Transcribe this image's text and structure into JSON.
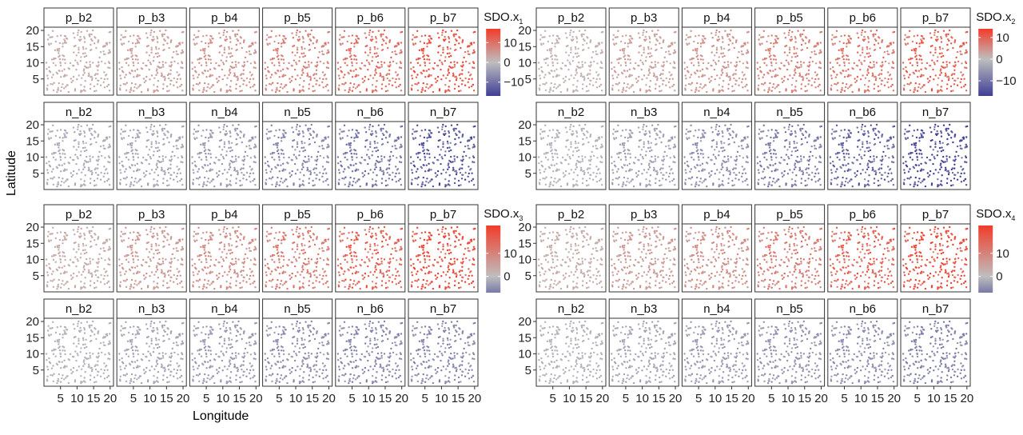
{
  "figure": {
    "ylabel": "Latitude",
    "xlabel": "Longitude"
  },
  "chart_data": {
    "type": "scatter",
    "x_ticks": [
      5,
      10,
      15,
      20
    ],
    "y_ticks": [
      5,
      10,
      15,
      20
    ],
    "xlim": [
      0,
      21
    ],
    "ylim": [
      0,
      21
    ],
    "grid": false,
    "color_scale": {
      "low": "#3f3e96",
      "mid": "#bebebe",
      "high": "#f23c2a"
    },
    "panels": [
      {
        "legend_title": "SDO.x",
        "legend_subscript": "1",
        "legend_ticks": [
          10,
          0,
          -10
        ],
        "legend_tick_labels": [
          "10",
          "0",
          "−10"
        ],
        "legend_range": [
          -17,
          17
        ],
        "rows": [
          {
            "sign": 1,
            "labels": [
              "p_b2",
              "p_b3",
              "p_b4",
              "p_b5",
              "p_b6",
              "p_b7"
            ],
            "levels": [
              0.15,
              0.25,
              0.35,
              0.5,
              0.65,
              0.85
            ]
          },
          {
            "sign": -1,
            "labels": [
              "n_b2",
              "n_b3",
              "n_b4",
              "n_b5",
              "n_b6",
              "n_b7"
            ],
            "levels": [
              0.15,
              0.2,
              0.3,
              0.45,
              0.6,
              0.85
            ]
          }
        ]
      },
      {
        "legend_title": "SDO.x",
        "legend_subscript": "2",
        "legend_ticks": [
          10,
          0,
          -10
        ],
        "legend_tick_labels": [
          "10",
          "0",
          "−10"
        ],
        "legend_range": [
          -17,
          14
        ],
        "rows": [
          {
            "sign": 1,
            "labels": [
              "p_b2",
              "p_b3",
              "p_b4",
              "p_b5",
              "p_b6",
              "p_b7"
            ],
            "levels": [
              0.1,
              0.25,
              0.35,
              0.5,
              0.6,
              0.75
            ]
          },
          {
            "sign": -1,
            "labels": [
              "n_b2",
              "n_b3",
              "n_b4",
              "n_b5",
              "n_b6",
              "n_b7"
            ],
            "levels": [
              0.1,
              0.25,
              0.4,
              0.55,
              0.75,
              1.0
            ]
          }
        ]
      },
      {
        "legend_title": "SDO.x",
        "legend_subscript": "3",
        "legend_ticks": [
          10,
          0
        ],
        "legend_tick_labels": [
          "10",
          "0"
        ],
        "legend_range": [
          -7,
          22
        ],
        "rows": [
          {
            "sign": 1,
            "labels": [
              "p_b2",
              "p_b3",
              "p_b4",
              "p_b5",
              "p_b6",
              "p_b7"
            ],
            "levels": [
              0.15,
              0.3,
              0.4,
              0.55,
              0.75,
              0.95
            ]
          },
          {
            "sign": -1,
            "labels": [
              "n_b2",
              "n_b3",
              "n_b4",
              "n_b5",
              "n_b6",
              "n_b7"
            ],
            "levels": [
              0.1,
              0.2,
              0.3,
              0.4,
              0.45,
              0.45
            ]
          }
        ]
      },
      {
        "legend_title": "SDO.x",
        "legend_subscript": "4",
        "legend_ticks": [
          10,
          0
        ],
        "legend_tick_labels": [
          "10",
          "0"
        ],
        "legend_range": [
          -7,
          22
        ],
        "rows": [
          {
            "sign": 1,
            "labels": [
              "p_b2",
              "p_b3",
              "p_b4",
              "p_b5",
              "p_b6",
              "p_b7"
            ],
            "levels": [
              0.15,
              0.3,
              0.4,
              0.55,
              0.75,
              0.95
            ]
          },
          {
            "sign": -1,
            "labels": [
              "n_b2",
              "n_b3",
              "n_b4",
              "n_b5",
              "n_b6",
              "n_b7"
            ],
            "levels": [
              0.1,
              0.2,
              0.3,
              0.35,
              0.4,
              0.5
            ]
          }
        ]
      }
    ]
  }
}
